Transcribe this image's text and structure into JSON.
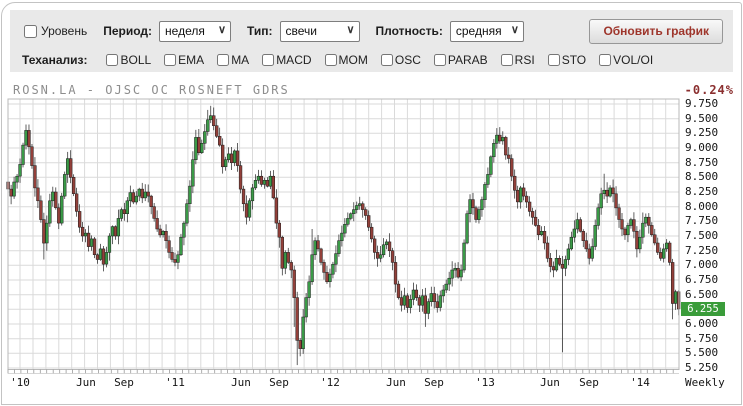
{
  "toolbar": {
    "level_label": "Уровень",
    "period_label": "Период:",
    "period_value": "неделя",
    "type_label": "Тип:",
    "type_value": "свечи",
    "density_label": "Плотность:",
    "density_value": "средняя",
    "refresh_button": "Обновить график"
  },
  "tech": {
    "label": "Теханализ:",
    "indicators": [
      "BOLL",
      "EMA",
      "MA",
      "MACD",
      "MOM",
      "OSC",
      "PARAB",
      "RSI",
      "STO",
      "VOL/OI"
    ]
  },
  "chart_header": {
    "title": "ROSN.LA - OJSC OC ROSNEFT GDRS",
    "change": "-0.24%",
    "change_color": "#8b2f2f"
  },
  "axis": {
    "y_ticks": [
      "9.750",
      "9.500",
      "9.250",
      "9.000",
      "8.750",
      "8.500",
      "8.250",
      "8.000",
      "7.750",
      "7.500",
      "7.250",
      "7.000",
      "6.750",
      "6.500",
      "6.000",
      "5.750",
      "5.500",
      "5.250"
    ],
    "price_badge": {
      "label": "6.255",
      "color": "#3a9c3a"
    },
    "x_ticks": [
      {
        "label": "'10",
        "week": 0
      },
      {
        "label": "Jun",
        "week": 22
      },
      {
        "label": "Sep",
        "week": 35
      },
      {
        "label": "'11",
        "week": 52
      },
      {
        "label": "Jun",
        "week": 74
      },
      {
        "label": "Sep",
        "week": 87
      },
      {
        "label": "'12",
        "week": 104
      },
      {
        "label": "Jun",
        "week": 126
      },
      {
        "label": "Sep",
        "week": 139
      },
      {
        "label": "'13",
        "week": 156
      },
      {
        "label": "Jun",
        "week": 178
      },
      {
        "label": "Sep",
        "week": 191
      },
      {
        "label": "'14",
        "week": 208
      }
    ],
    "axis_name": "Weekly"
  },
  "chart_data": {
    "type": "candlestick",
    "symbol": "ROSN.LA",
    "title": "ROSN.LA - OJSC OC ROSNEFT GDRS",
    "timeframe": "Weekly",
    "last_price": 6.255,
    "change_pct": -0.24,
    "ylim": [
      5.25,
      9.75
    ],
    "y_step": 0.25,
    "x_range_weeks": [
      -4,
      221
    ],
    "x_week0": "start of 2010 ('10 tick)",
    "anchors": [
      [
        -4,
        8.3
      ],
      [
        -3,
        8.18
      ],
      [
        -2,
        8.42
      ],
      [
        -1,
        8.52
      ],
      [
        0,
        8.72
      ],
      [
        1,
        9.05
      ],
      [
        2,
        9.3
      ],
      [
        3,
        9.02
      ],
      [
        4,
        8.7
      ],
      [
        5,
        8.32
      ],
      [
        6,
        8.1
      ],
      [
        7,
        7.78
      ],
      [
        8,
        7.38
      ],
      [
        9,
        7.72
      ],
      [
        10,
        8.1
      ],
      [
        11,
        8.25
      ],
      [
        12,
        7.98
      ],
      [
        13,
        7.72
      ],
      [
        14,
        8.18
      ],
      [
        15,
        8.55
      ],
      [
        16,
        8.82
      ],
      [
        17,
        8.5
      ],
      [
        18,
        8.22
      ],
      [
        19,
        7.92
      ],
      [
        20,
        7.65
      ],
      [
        21,
        7.5
      ],
      [
        22,
        7.55
      ],
      [
        23,
        7.32
      ],
      [
        24,
        7.45
      ],
      [
        25,
        7.18
      ],
      [
        26,
        7.1
      ],
      [
        27,
        7.28
      ],
      [
        28,
        7.02
      ],
      [
        29,
        7.22
      ],
      [
        30,
        7.5
      ],
      [
        31,
        7.66
      ],
      [
        32,
        7.5
      ],
      [
        33,
        7.8
      ],
      [
        34,
        7.95
      ],
      [
        35,
        7.88
      ],
      [
        36,
        8.1
      ],
      [
        37,
        8.24
      ],
      [
        38,
        8.08
      ],
      [
        39,
        8.18
      ],
      [
        40,
        8.3
      ],
      [
        41,
        8.15
      ],
      [
        42,
        8.25
      ],
      [
        43,
        8.18
      ],
      [
        44,
        8.0
      ],
      [
        45,
        7.8
      ],
      [
        46,
        7.62
      ],
      [
        47,
        7.52
      ],
      [
        48,
        7.58
      ],
      [
        49,
        7.42
      ],
      [
        50,
        7.22
      ],
      [
        51,
        7.1
      ],
      [
        52,
        7.05
      ],
      [
        53,
        7.18
      ],
      [
        54,
        7.48
      ],
      [
        55,
        7.72
      ],
      [
        56,
        8.05
      ],
      [
        57,
        8.35
      ],
      [
        58,
        8.8
      ],
      [
        59,
        9.18
      ],
      [
        60,
        8.92
      ],
      [
        61,
        9.08
      ],
      [
        62,
        9.28
      ],
      [
        63,
        9.48
      ],
      [
        64,
        9.55
      ],
      [
        65,
        9.38
      ],
      [
        66,
        9.2
      ],
      [
        67,
        9.05
      ],
      [
        68,
        8.68
      ],
      [
        69,
        8.8
      ],
      [
        70,
        8.9
      ],
      [
        71,
        8.75
      ],
      [
        72,
        8.95
      ],
      [
        73,
        8.7
      ],
      [
        74,
        8.3
      ],
      [
        75,
        8.05
      ],
      [
        76,
        7.82
      ],
      [
        77,
        8.1
      ],
      [
        78,
        8.32
      ],
      [
        79,
        8.45
      ],
      [
        80,
        8.52
      ],
      [
        81,
        8.38
      ],
      [
        82,
        8.45
      ],
      [
        83,
        8.35
      ],
      [
        84,
        8.52
      ],
      [
        85,
        8.15
      ],
      [
        86,
        7.72
      ],
      [
        87,
        7.48
      ],
      [
        88,
        6.95
      ],
      [
        89,
        7.22
      ],
      [
        90,
        7.05
      ],
      [
        91,
        6.92
      ],
      [
        92,
        6.45
      ],
      [
        93,
        5.72
      ],
      [
        94,
        5.58
      ],
      [
        95,
        6.12
      ],
      [
        96,
        6.45
      ],
      [
        97,
        6.72
      ],
      [
        98,
        7.18
      ],
      [
        99,
        7.42
      ],
      [
        100,
        7.28
      ],
      [
        101,
        7.05
      ],
      [
        102,
        6.88
      ],
      [
        103,
        6.72
      ],
      [
        104,
        6.85
      ],
      [
        105,
        7.02
      ],
      [
        106,
        7.2
      ],
      [
        107,
        7.42
      ],
      [
        108,
        7.55
      ],
      [
        109,
        7.7
      ],
      [
        110,
        7.8
      ],
      [
        111,
        7.88
      ],
      [
        112,
        7.95
      ],
      [
        113,
        8.02
      ],
      [
        114,
        8.05
      ],
      [
        115,
        7.95
      ],
      [
        116,
        7.85
      ],
      [
        117,
        7.65
      ],
      [
        118,
        7.45
      ],
      [
        119,
        7.22
      ],
      [
        120,
        7.12
      ],
      [
        121,
        7.18
      ],
      [
        122,
        7.35
      ],
      [
        123,
        7.4
      ],
      [
        124,
        7.25
      ],
      [
        125,
        7.05
      ],
      [
        126,
        6.68
      ],
      [
        127,
        6.45
      ],
      [
        128,
        6.32
      ],
      [
        129,
        6.48
      ],
      [
        130,
        6.28
      ],
      [
        131,
        6.42
      ],
      [
        132,
        6.58
      ],
      [
        133,
        6.45
      ],
      [
        134,
        6.32
      ],
      [
        135,
        6.48
      ],
      [
        136,
        6.18
      ],
      [
        137,
        6.38
      ],
      [
        138,
        6.52
      ],
      [
        139,
        6.38
      ],
      [
        140,
        6.28
      ],
      [
        141,
        6.48
      ],
      [
        142,
        6.58
      ],
      [
        143,
        6.68
      ],
      [
        144,
        6.78
      ],
      [
        145,
        6.92
      ],
      [
        146,
        6.95
      ],
      [
        147,
        6.8
      ],
      [
        148,
        6.92
      ],
      [
        149,
        7.38
      ],
      [
        150,
        7.88
      ],
      [
        151,
        8.12
      ],
      [
        152,
        7.98
      ],
      [
        153,
        7.78
      ],
      [
        154,
        7.95
      ],
      [
        155,
        8.12
      ],
      [
        156,
        8.38
      ],
      [
        157,
        8.55
      ],
      [
        158,
        8.85
      ],
      [
        159,
        9.08
      ],
      [
        160,
        9.22
      ],
      [
        161,
        9.12
      ],
      [
        162,
        9.18
      ],
      [
        163,
        8.88
      ],
      [
        164,
        8.82
      ],
      [
        165,
        8.52
      ],
      [
        166,
        8.28
      ],
      [
        167,
        8.08
      ],
      [
        168,
        8.32
      ],
      [
        169,
        8.18
      ],
      [
        170,
        8.08
      ],
      [
        171,
        7.92
      ],
      [
        172,
        7.82
      ],
      [
        173,
        7.68
      ],
      [
        174,
        7.52
      ],
      [
        175,
        7.58
      ],
      [
        176,
        7.38
      ],
      [
        177,
        7.12
      ],
      [
        178,
        6.98
      ],
      [
        179,
        6.92
      ],
      [
        180,
        7.12
      ],
      [
        181,
        7.02
      ],
      [
        182,
        6.95
      ],
      [
        183,
        7.1
      ],
      [
        184,
        7.28
      ],
      [
        185,
        7.48
      ],
      [
        186,
        7.62
      ],
      [
        187,
        7.78
      ],
      [
        188,
        7.58
      ],
      [
        189,
        7.42
      ],
      [
        190,
        7.28
      ],
      [
        191,
        7.12
      ],
      [
        192,
        7.32
      ],
      [
        193,
        7.68
      ],
      [
        194,
        7.98
      ],
      [
        195,
        8.22
      ],
      [
        196,
        8.28
      ],
      [
        197,
        8.18
      ],
      [
        198,
        8.32
      ],
      [
        199,
        8.22
      ],
      [
        200,
        7.98
      ],
      [
        201,
        7.78
      ],
      [
        202,
        7.62
      ],
      [
        203,
        7.52
      ],
      [
        204,
        7.68
      ],
      [
        205,
        7.78
      ],
      [
        206,
        7.58
      ],
      [
        207,
        7.28
      ],
      [
        208,
        7.48
      ],
      [
        209,
        7.72
      ],
      [
        210,
        7.82
      ],
      [
        211,
        7.68
      ],
      [
        212,
        7.52
      ],
      [
        213,
        7.38
      ],
      [
        214,
        7.22
      ],
      [
        215,
        7.12
      ],
      [
        216,
        7.28
      ],
      [
        217,
        7.38
      ],
      [
        218,
        7.05
      ],
      [
        219,
        6.35
      ],
      [
        220,
        6.55
      ],
      [
        221,
        6.255
      ]
    ],
    "specials": {
      "2": {
        "high": 9.4
      },
      "8": {
        "low": 7.1
      },
      "63": {
        "high": 9.65
      },
      "64": {
        "high": 9.72
      },
      "87": {
        "low": 7.3
      },
      "92": {
        "low": 5.95
      },
      "93": {
        "low": 5.3
      },
      "94": {
        "low": 5.45
      },
      "98": {
        "high": 7.62
      },
      "136": {
        "low": 5.95
      },
      "160": {
        "high": 9.34
      },
      "182": {
        "low": 5.52
      },
      "196": {
        "high": 8.56
      },
      "209": {
        "high": 7.9
      },
      "219": {
        "low": 6.08
      },
      "221": {
        "low": 6.15
      }
    },
    "colors": {
      "up": "#3a9a47",
      "down": "#93403a",
      "wick": "#1f1f1f",
      "grid": "#dadada",
      "border": "#b8b8b8"
    }
  }
}
